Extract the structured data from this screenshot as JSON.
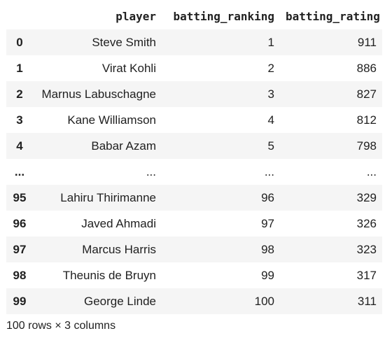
{
  "table": {
    "columns": [
      "",
      "player",
      "batting_ranking",
      "batting_rating"
    ],
    "rows": [
      {
        "index": "0",
        "player": "Steve Smith",
        "batting_ranking": "1",
        "batting_rating": "911"
      },
      {
        "index": "1",
        "player": "Virat Kohli",
        "batting_ranking": "2",
        "batting_rating": "886"
      },
      {
        "index": "2",
        "player": "Marnus Labuschagne",
        "batting_ranking": "3",
        "batting_rating": "827"
      },
      {
        "index": "3",
        "player": "Kane Williamson",
        "batting_ranking": "4",
        "batting_rating": "812"
      },
      {
        "index": "4",
        "player": "Babar Azam",
        "batting_ranking": "5",
        "batting_rating": "798"
      },
      {
        "index": "...",
        "player": "...",
        "batting_ranking": "...",
        "batting_rating": "..."
      },
      {
        "index": "95",
        "player": "Lahiru Thirimanne",
        "batting_ranking": "96",
        "batting_rating": "329"
      },
      {
        "index": "96",
        "player": "Javed Ahmadi",
        "batting_ranking": "97",
        "batting_rating": "326"
      },
      {
        "index": "97",
        "player": "Marcus Harris",
        "batting_ranking": "98",
        "batting_rating": "323"
      },
      {
        "index": "98",
        "player": "Theunis de Bruyn",
        "batting_ranking": "99",
        "batting_rating": "317"
      },
      {
        "index": "99",
        "player": "George Linde",
        "batting_ranking": "100",
        "batting_rating": "311"
      }
    ]
  },
  "footer": {
    "shape_text": "100 rows × 3 columns"
  }
}
